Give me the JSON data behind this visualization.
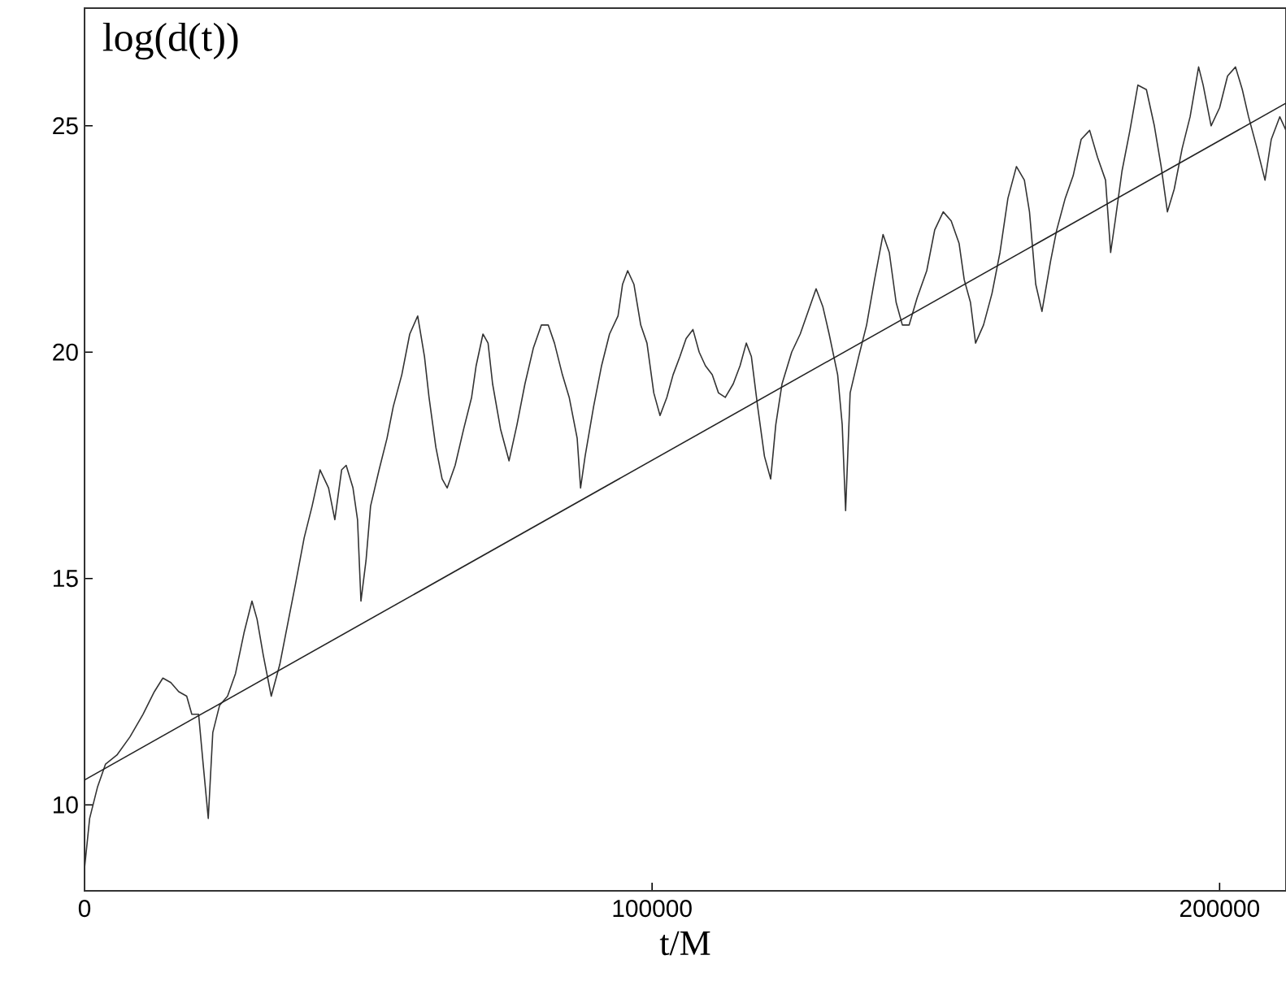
{
  "chart_data": {
    "type": "line",
    "ylabel": "log(d(t))",
    "xlabel": "t/M",
    "xlim": [
      0,
      211700
    ],
    "ylim": [
      8.1,
      27.6
    ],
    "xticks": [
      0,
      100000,
      200000
    ],
    "yticks": [
      10,
      15,
      20,
      25
    ],
    "marker": "none",
    "line_style": "solid",
    "series": [
      {
        "color": "#333333",
        "x": [
          0,
          900,
          2300,
          3700,
          5700,
          8000,
          10300,
          12300,
          13800,
          15200,
          16600,
          18000,
          18900,
          20100,
          20900,
          21800,
          22600,
          23800,
          25200,
          26600,
          28100,
          29500,
          30400,
          31500,
          32900,
          34400,
          35800,
          37200,
          38700,
          40100,
          41500,
          43000,
          44100,
          45300,
          46100,
          47300,
          48100,
          48700,
          49600,
          50400,
          51900,
          53300,
          54400,
          55900,
          57300,
          58700,
          59900,
          60700,
          61900,
          63000,
          63900,
          65300,
          66800,
          68200,
          69000,
          70200,
          71100,
          71900,
          73300,
          74800,
          76200,
          77600,
          79100,
          80500,
          81700,
          82800,
          84200,
          85400,
          86800,
          87400,
          88200,
          89700,
          91100,
          92500,
          94000,
          94800,
          95700,
          96800,
          98000,
          99100,
          100300,
          101400,
          102600,
          103700,
          104900,
          106000,
          107200,
          108300,
          109400,
          110600,
          111700,
          112900,
          114300,
          115500,
          116600,
          117500,
          118600,
          119800,
          120900,
          121800,
          122900,
          124600,
          126100,
          127500,
          128900,
          130100,
          131200,
          132700,
          133500,
          134100,
          134900,
          136400,
          137800,
          139200,
          140700,
          141800,
          143000,
          144100,
          145300,
          146700,
          148400,
          149800,
          151300,
          152700,
          154100,
          155000,
          156100,
          157000,
          158400,
          159900,
          161300,
          162700,
          164200,
          165600,
          166500,
          167600,
          168700,
          170200,
          171300,
          172800,
          174200,
          175600,
          177100,
          178500,
          179900,
          180800,
          181600,
          182800,
          184200,
          185600,
          187100,
          188500,
          189700,
          190800,
          192000,
          193400,
          194800,
          196300,
          197100,
          198500,
          200000,
          201400,
          202800,
          204000,
          205100,
          206600,
          208000,
          209100,
          210600,
          211700
        ],
        "values": [
          8.6,
          9.7,
          10.4,
          10.9,
          11.1,
          11.5,
          12.0,
          12.5,
          12.8,
          12.7,
          12.5,
          12.4,
          12.0,
          12.0,
          10.9,
          9.7,
          11.6,
          12.2,
          12.4,
          12.9,
          13.8,
          14.5,
          14.1,
          13.3,
          12.4,
          13.1,
          14.0,
          14.9,
          15.9,
          16.6,
          17.4,
          17.0,
          16.3,
          17.4,
          17.5,
          17.0,
          16.3,
          14.5,
          15.4,
          16.6,
          17.4,
          18.1,
          18.8,
          19.5,
          20.4,
          20.8,
          19.9,
          19.0,
          17.9,
          17.2,
          17.0,
          17.5,
          18.3,
          19.0,
          19.7,
          20.4,
          20.2,
          19.3,
          18.3,
          17.6,
          18.4,
          19.3,
          20.1,
          20.6,
          20.6,
          20.2,
          19.5,
          19.0,
          18.1,
          17.0,
          17.7,
          18.8,
          19.7,
          20.4,
          20.8,
          21.5,
          21.8,
          21.5,
          20.6,
          20.2,
          19.1,
          18.6,
          19.0,
          19.5,
          19.9,
          20.3,
          20.5,
          20.0,
          19.7,
          19.5,
          19.1,
          19.0,
          19.3,
          19.7,
          20.2,
          19.9,
          18.8,
          17.7,
          17.2,
          18.4,
          19.3,
          20.0,
          20.4,
          20.9,
          21.4,
          21.0,
          20.4,
          19.5,
          18.4,
          16.5,
          19.1,
          19.9,
          20.6,
          21.6,
          22.6,
          22.2,
          21.1,
          20.6,
          20.6,
          21.2,
          21.8,
          22.7,
          23.1,
          22.9,
          22.4,
          21.6,
          21.1,
          20.2,
          20.6,
          21.3,
          22.2,
          23.4,
          24.1,
          23.8,
          23.1,
          21.5,
          20.9,
          22.0,
          22.7,
          23.4,
          23.9,
          24.7,
          24.9,
          24.3,
          23.8,
          22.2,
          22.9,
          24.0,
          24.9,
          25.9,
          25.8,
          25.0,
          24.1,
          23.1,
          23.6,
          24.5,
          25.2,
          26.3,
          25.9,
          25.0,
          25.4,
          26.1,
          26.3,
          25.8,
          25.2,
          24.5,
          23.8,
          24.7,
          25.2,
          24.9
        ]
      },
      {
        "color": "#222222",
        "x": [
          0,
          211700
        ],
        "values": [
          10.55,
          25.5
        ]
      }
    ]
  }
}
